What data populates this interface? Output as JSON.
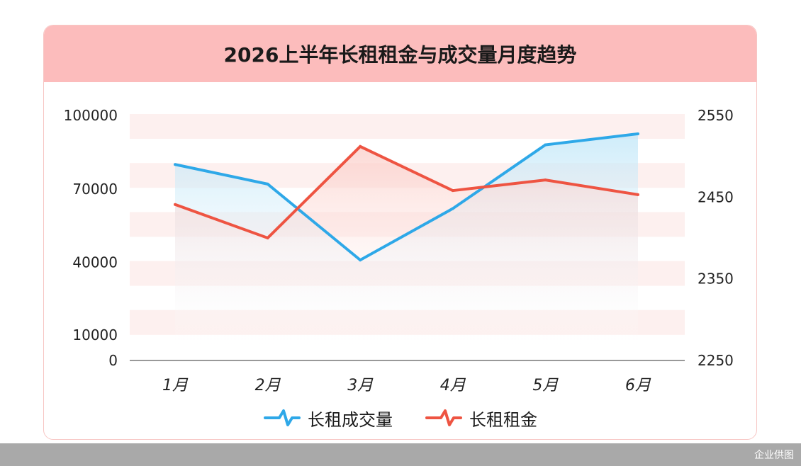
{
  "title": "2026上半年长租租金与成交量月度趋势",
  "watermark": "企业供图",
  "colors": {
    "volume": "#2ea8e8",
    "rent": "#ee5442",
    "band": "#fdeceb",
    "header": "#fcbcbc"
  },
  "chart_data": {
    "type": "line",
    "categories": [
      "1月",
      "2月",
      "3月",
      "4月",
      "5月",
      "6月"
    ],
    "axes": {
      "y_left": {
        "ticks": [
          0,
          10000,
          40000,
          70000,
          100000
        ],
        "ylim": [
          0,
          100000
        ]
      },
      "y_right": {
        "ticks": [
          2250,
          2350,
          2450,
          2550
        ],
        "ylim": [
          2250,
          2550
        ]
      }
    },
    "series": [
      {
        "name": "长租成交量",
        "axis": "left",
        "values": [
          80000,
          72000,
          41000,
          62000,
          88000,
          92500
        ]
      },
      {
        "name": "长租租金",
        "axis": "right",
        "values": [
          2441,
          2400,
          2512,
          2458,
          2471,
          2453
        ]
      }
    ],
    "legend_position": "bottom-center",
    "grid": "horizontal bands"
  }
}
